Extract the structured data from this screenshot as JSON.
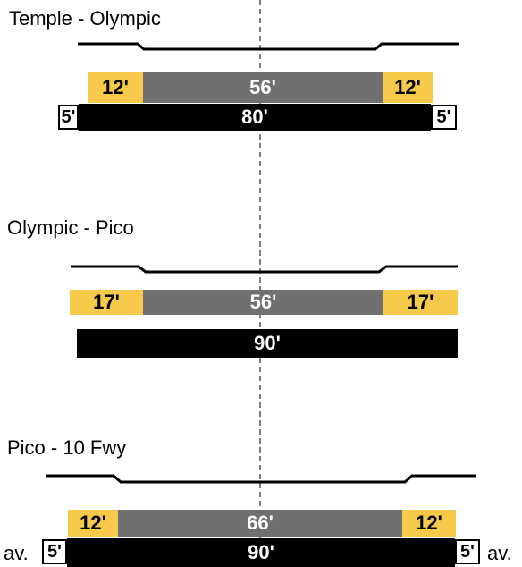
{
  "colors": {
    "lane": "#f6c94a",
    "median": "#707070",
    "row": "#000000"
  },
  "segments": [
    {
      "title": "Temple - Olympic",
      "left_lane": "12'",
      "center": "56'",
      "right_lane": "12'",
      "row": "80'",
      "left_sidewalk": "5'",
      "right_sidewalk": "5'"
    },
    {
      "title": "Olympic - Pico",
      "left_lane": "17'",
      "center": "56'",
      "right_lane": "17'",
      "row": "90'"
    },
    {
      "title": "Pico - 10 Fwy",
      "left_lane": "12'",
      "center": "66'",
      "right_lane": "12'",
      "row": "90'",
      "left_sidewalk": "5'",
      "right_sidewalk": "5'",
      "left_note": "av.",
      "right_note": "av."
    }
  ]
}
